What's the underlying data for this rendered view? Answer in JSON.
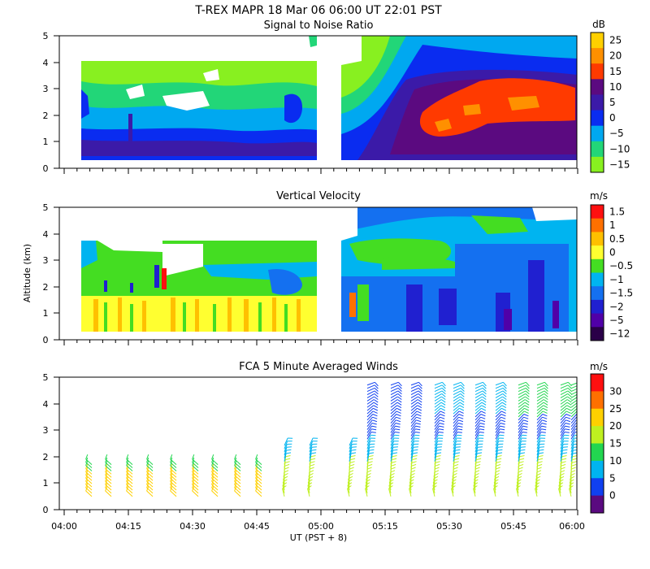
{
  "figure": {
    "title": "T-REX   MAPR 18 Mar 06   06:00 UT   22:01   PST",
    "xlabel": "UT  (PST + 8)",
    "ylabel": "Altitude (km)",
    "x_ticks": [
      "04:00",
      "04:15",
      "04:30",
      "04:45",
      "05:00",
      "05:15",
      "05:30",
      "05:45",
      "06:00"
    ],
    "y_ticks": [
      "0",
      "1",
      "2",
      "3",
      "4",
      "5"
    ]
  },
  "chart_data": [
    {
      "type": "heatmap",
      "title": "Signal to Noise Ratio",
      "unit": "dB",
      "xlim": [
        "04:00",
        "06:00"
      ],
      "ylim": [
        0,
        5
      ],
      "colorbar": {
        "labels": [
          "25",
          "20",
          "15",
          "10",
          "5",
          "0",
          "−5",
          "−10",
          "−15"
        ],
        "colors": [
          "#ffd000",
          "#ff9000",
          "#ff3a00",
          "#5b0a80",
          "#3b1aa8",
          "#0a2cf0",
          "#00a8f0",
          "#22d678",
          "#88f020"
        ]
      }
    },
    {
      "type": "heatmap",
      "title": "Vertical Velocity",
      "unit": "m/s",
      "xlim": [
        "04:00",
        "06:00"
      ],
      "ylim": [
        0,
        5
      ],
      "colorbar": {
        "labels": [
          "1.5",
          "1",
          "0.5",
          "0",
          "−0.5",
          "−1",
          "−1.5",
          "−2",
          "−5",
          "−12"
        ],
        "colors": [
          "#ff1010",
          "#ff7000",
          "#ffc000",
          "#ffff30",
          "#44dd22",
          "#00b4f0",
          "#1470f0",
          "#2020d0",
          "#5000a8",
          "#2a0048"
        ]
      }
    },
    {
      "type": "scatter",
      "title": "FCA 5 Minute Averaged Winds",
      "unit": "m/s",
      "xlim": [
        "04:00",
        "06:00"
      ],
      "ylim": [
        0,
        5
      ],
      "colorbar": {
        "labels": [
          "30",
          "25",
          "20",
          "15",
          "10",
          "5",
          "0"
        ],
        "colors": [
          "#ff1010",
          "#ff7000",
          "#ffd000",
          "#bff020",
          "#22d650",
          "#00b4f0",
          "#1040f0",
          "#5a0a80"
        ]
      }
    }
  ]
}
